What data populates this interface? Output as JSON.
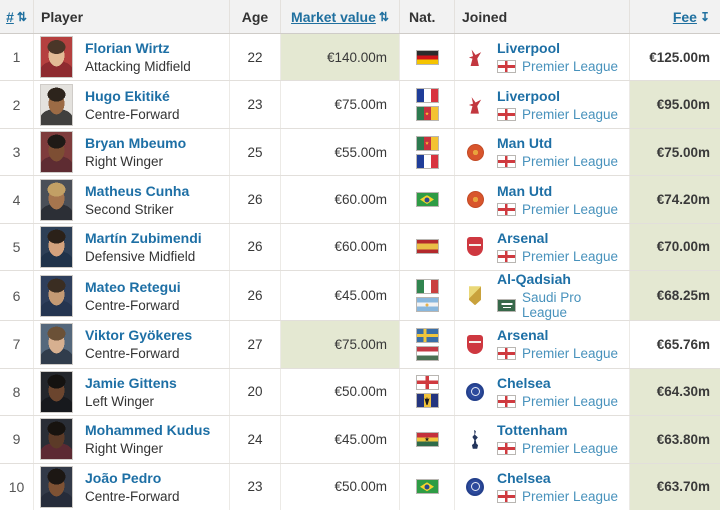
{
  "header": {
    "rank_label": "#",
    "player_label": "Player",
    "age_label": "Age",
    "market_value_label": "Market value",
    "nat_label": "Nat.",
    "joined_label": "Joined",
    "fee_label": "Fee",
    "sort_both_icon": "⇅",
    "sort_desc_icon": "↧"
  },
  "colors": {
    "highlight_green": "#e4e8d2",
    "link_blue": "#1d6fa5",
    "league_link_blue": "#4892bc",
    "header_bg": "#f2f2f2"
  },
  "rows": [
    {
      "rank": "1",
      "name": "Florian Wirtz",
      "position": "Attacking Midfield",
      "age": "22",
      "market_value": "€140.00m",
      "mv_highlight": true,
      "nationalities": [
        "de"
      ],
      "club": "Liverpool",
      "club_crest": "liverpool",
      "league": "Premier League",
      "league_flag": "eng",
      "fee": "€125.00m",
      "fee_highlight": false
    },
    {
      "rank": "2",
      "name": "Hugo Ekitiké",
      "position": "Centre-Forward",
      "age": "23",
      "market_value": "€75.00m",
      "mv_highlight": false,
      "nationalities": [
        "fr",
        "cm"
      ],
      "club": "Liverpool",
      "club_crest": "liverpool",
      "league": "Premier League",
      "league_flag": "eng",
      "fee": "€95.00m",
      "fee_highlight": true
    },
    {
      "rank": "3",
      "name": "Bryan Mbeumo",
      "position": "Right Winger",
      "age": "25",
      "market_value": "€55.00m",
      "mv_highlight": false,
      "nationalities": [
        "cm",
        "fr"
      ],
      "club": "Man Utd",
      "club_crest": "manutd",
      "league": "Premier League",
      "league_flag": "eng",
      "fee": "€75.00m",
      "fee_highlight": true
    },
    {
      "rank": "4",
      "name": "Matheus Cunha",
      "position": "Second Striker",
      "age": "26",
      "market_value": "€60.00m",
      "mv_highlight": false,
      "nationalities": [
        "br"
      ],
      "club": "Man Utd",
      "club_crest": "manutd",
      "league": "Premier League",
      "league_flag": "eng",
      "fee": "€74.20m",
      "fee_highlight": true
    },
    {
      "rank": "5",
      "name": "Martín Zubimendi",
      "position": "Defensive Midfield",
      "age": "26",
      "market_value": "€60.00m",
      "mv_highlight": false,
      "nationalities": [
        "es"
      ],
      "club": "Arsenal",
      "club_crest": "arsenal",
      "league": "Premier League",
      "league_flag": "eng",
      "fee": "€70.00m",
      "fee_highlight": true
    },
    {
      "rank": "6",
      "name": "Mateo Retegui",
      "position": "Centre-Forward",
      "age": "26",
      "market_value": "€45.00m",
      "mv_highlight": false,
      "nationalities": [
        "it",
        "ar"
      ],
      "club": "Al-Qadsiah",
      "club_crest": "alqadsiah",
      "league": "Saudi Pro League",
      "league_flag": "sa",
      "fee": "€68.25m",
      "fee_highlight": true
    },
    {
      "rank": "7",
      "name": "Viktor Gyökeres",
      "position": "Centre-Forward",
      "age": "27",
      "market_value": "€75.00m",
      "mv_highlight": true,
      "nationalities": [
        "se",
        "hu"
      ],
      "club": "Arsenal",
      "club_crest": "arsenal",
      "league": "Premier League",
      "league_flag": "eng",
      "fee": "€65.76m",
      "fee_highlight": false
    },
    {
      "rank": "8",
      "name": "Jamie Gittens",
      "position": "Left Winger",
      "age": "20",
      "market_value": "€50.00m",
      "mv_highlight": false,
      "nationalities": [
        "eng",
        "bb"
      ],
      "club": "Chelsea",
      "club_crest": "chelsea",
      "league": "Premier League",
      "league_flag": "eng",
      "fee": "€64.30m",
      "fee_highlight": true
    },
    {
      "rank": "9",
      "name": "Mohammed Kudus",
      "position": "Right Winger",
      "age": "24",
      "market_value": "€45.00m",
      "mv_highlight": false,
      "nationalities": [
        "gh"
      ],
      "club": "Tottenham",
      "club_crest": "tottenham",
      "league": "Premier League",
      "league_flag": "eng",
      "fee": "€63.80m",
      "fee_highlight": true
    },
    {
      "rank": "10",
      "name": "João Pedro",
      "position": "Centre-Forward",
      "age": "23",
      "market_value": "€50.00m",
      "mv_highlight": false,
      "nationalities": [
        "br"
      ],
      "club": "Chelsea",
      "club_crest": "chelsea",
      "league": "Premier League",
      "league_flag": "eng",
      "fee": "€63.70m",
      "fee_highlight": true
    }
  ]
}
